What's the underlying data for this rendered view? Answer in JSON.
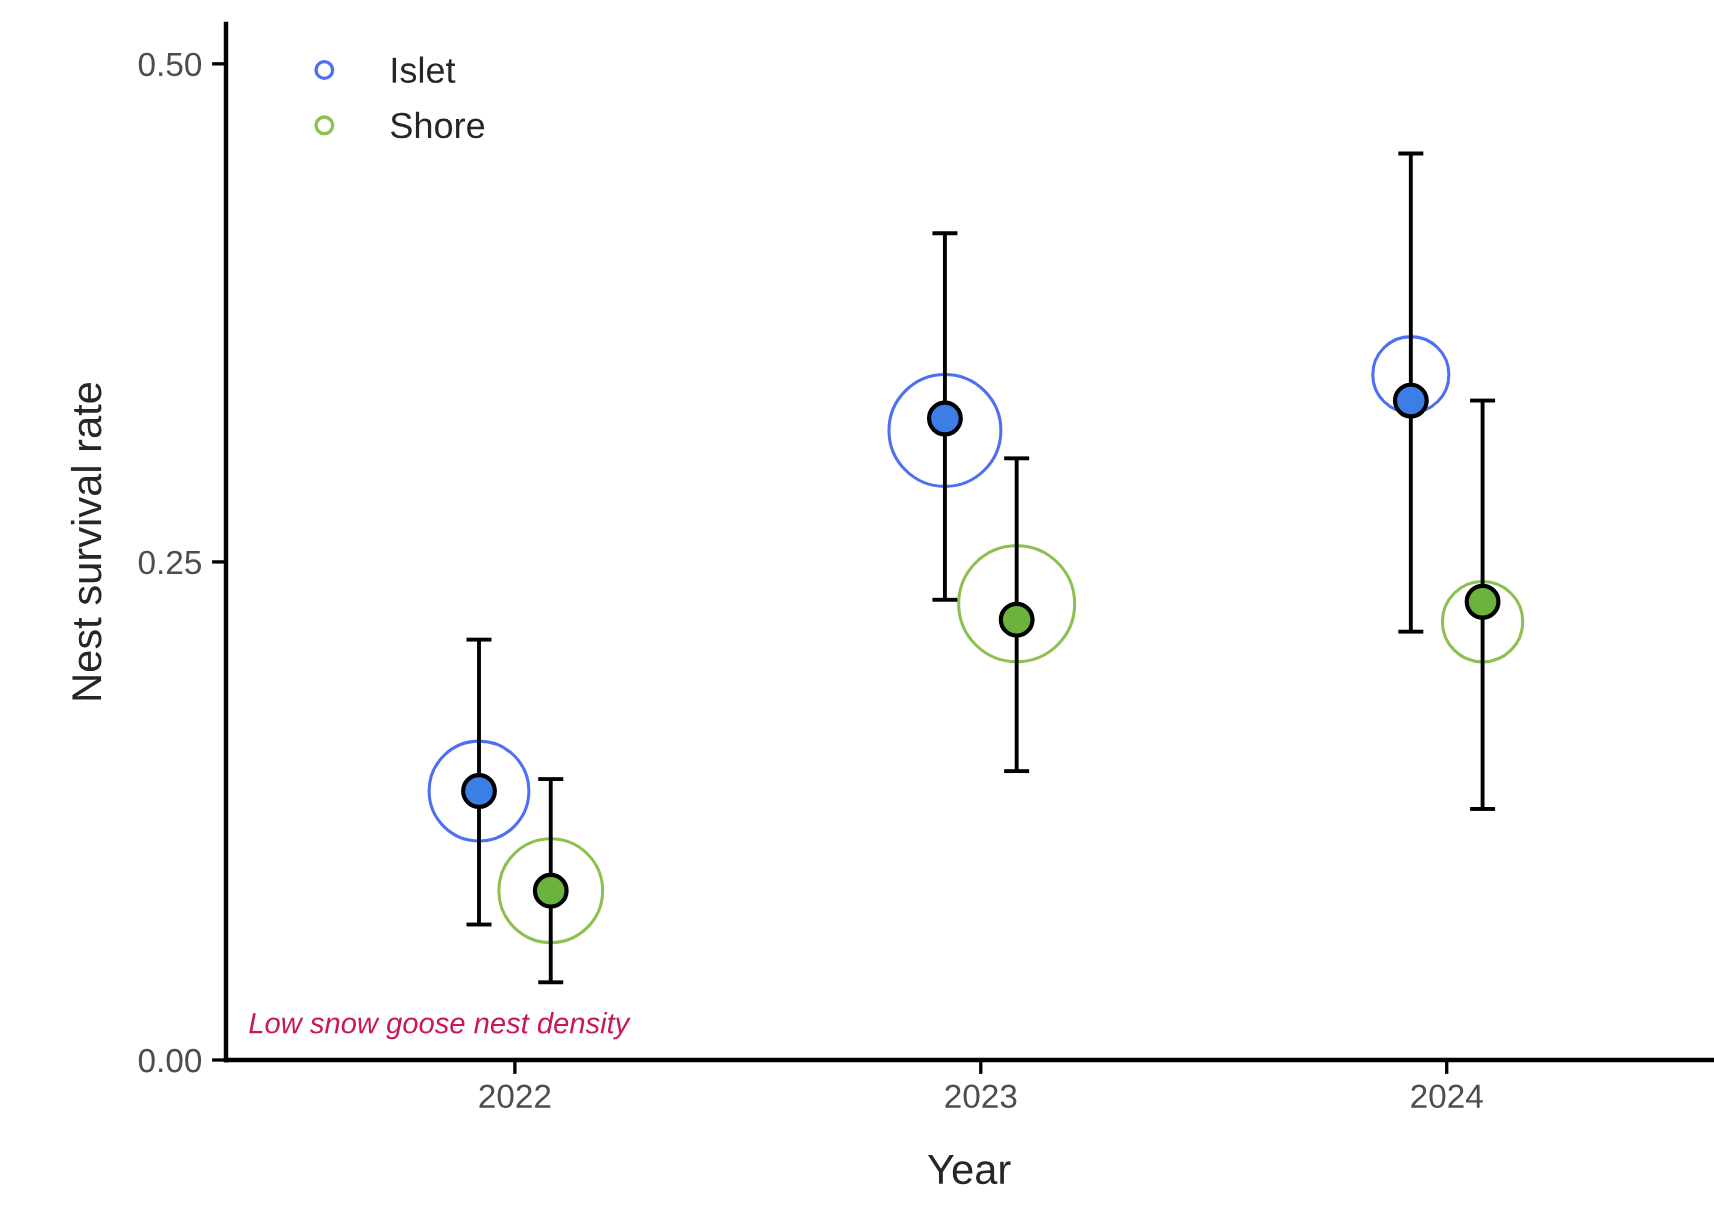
{
  "chart_data": {
    "type": "scatter",
    "xlabel": "Year",
    "ylabel": "Nest survival rate",
    "categories": [
      "2022",
      "2023",
      "2024"
    ],
    "ylim": [
      0,
      0.52
    ],
    "yticks": [
      {
        "value": 0,
        "label": "0.00"
      },
      {
        "value": 0.25,
        "label": "0.25"
      },
      {
        "value": 0.5,
        "label": "0.50"
      }
    ],
    "grid": false,
    "legend": "top left",
    "annotations": [
      "Low snow goose nest density"
    ],
    "series": [
      {
        "name": "Islet",
        "type": "bubble",
        "color": "#4f6ff2",
        "values": [
          0.135,
          0.316,
          0.344
        ],
        "sizes": [
          0.74,
          0.93,
          0.43
        ]
      },
      {
        "name": "Shore",
        "type": "bubble",
        "color": "#8cc04f",
        "values": [
          0.085,
          0.229,
          0.22
        ],
        "sizes": [
          0.8,
          1.0,
          0.48
        ]
      },
      {
        "color": "#3b7fe6",
        "values": [
          0.135,
          0.322,
          0.331
        ],
        "errors": [
          [
            0.068,
            0.211
          ],
          [
            0.231,
            0.415
          ],
          [
            0.215,
            0.455
          ]
        ]
      },
      {
        "color": "#6cb33e",
        "values": [
          0.085,
          0.221,
          0.23
        ],
        "errors": [
          [
            0.039,
            0.141
          ],
          [
            0.145,
            0.302
          ],
          [
            0.126,
            0.331
          ]
        ]
      }
    ]
  }
}
